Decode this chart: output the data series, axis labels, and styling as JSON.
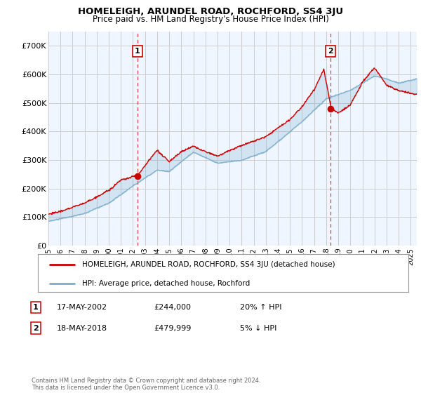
{
  "title": "HOMELEIGH, ARUNDEL ROAD, ROCHFORD, SS4 3JU",
  "subtitle": "Price paid vs. HM Land Registry's House Price Index (HPI)",
  "legend_line1": "HOMELEIGH, ARUNDEL ROAD, ROCHFORD, SS4 3JU (detached house)",
  "legend_line2": "HPI: Average price, detached house, Rochford",
  "annotation1_label": "1",
  "annotation1_date": "17-MAY-2002",
  "annotation1_price": "£244,000",
  "annotation1_hpi": "20% ↑ HPI",
  "annotation2_label": "2",
  "annotation2_date": "18-MAY-2018",
  "annotation2_price": "£479,999",
  "annotation2_hpi": "5% ↓ HPI",
  "footnote": "Contains HM Land Registry data © Crown copyright and database right 2024.\nThis data is licensed under the Open Government Licence v3.0.",
  "house_color": "#cc0000",
  "hpi_color": "#7aadcc",
  "fill_color": "#ddeeff",
  "vline_color": "#cc3333",
  "background_color": "#ffffff",
  "plot_bg_color": "#f0f6ff",
  "grid_color": "#cccccc",
  "ylim": [
    0,
    750000
  ],
  "yticks": [
    0,
    100000,
    200000,
    300000,
    400000,
    500000,
    600000,
    700000
  ],
  "ytick_labels": [
    "£0",
    "£100K",
    "£200K",
    "£300K",
    "£400K",
    "£500K",
    "£600K",
    "£700K"
  ],
  "sale1_x": 2002.38,
  "sale1_y": 244000,
  "sale2_x": 2018.38,
  "sale2_y": 479999,
  "xmin": 1995.0,
  "xmax": 2025.5
}
